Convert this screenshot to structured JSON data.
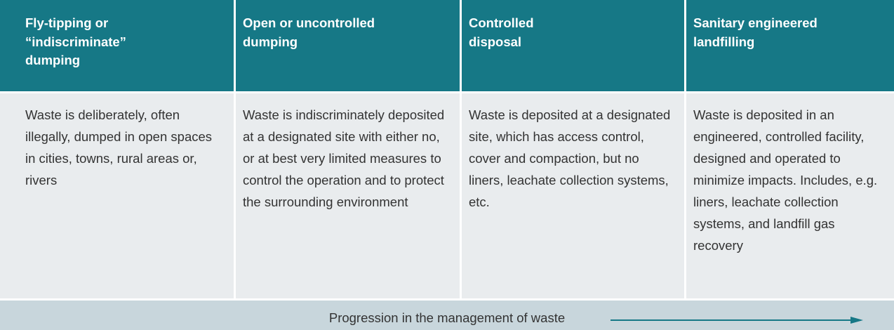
{
  "table": {
    "header": [
      "Fly-tipping or “indiscriminate” dumping",
      "Open or uncontrolled dumping",
      "Controlled disposal",
      "Sanitary engineered landfilling"
    ],
    "rows": [
      [
        "Waste is deliberately, often illegally, dumped in open spaces in cities, towns, rural areas or, rivers",
        "Waste is indiscriminately deposited at a designated site with either no, or at best very limited measures to control the operation and to protect the surrounding environment",
        "Waste is deposited at a designated site, which has access control, cover and compaction, but no liners, leachate collection systems, etc.",
        "Waste is deposited in an engineered, controlled facility, designed and operated to minimize impacts. Includes, e.g. liners, leachate collection systems, and landfill gas recovery"
      ]
    ],
    "footer": "Progression in the management of waste"
  }
}
